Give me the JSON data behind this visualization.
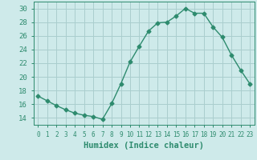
{
  "x": [
    0,
    1,
    2,
    3,
    4,
    5,
    6,
    7,
    8,
    9,
    10,
    11,
    12,
    13,
    14,
    15,
    16,
    17,
    18,
    19,
    20,
    21,
    22,
    23
  ],
  "y": [
    17.2,
    16.5,
    15.8,
    15.2,
    14.7,
    14.4,
    14.2,
    13.8,
    16.1,
    19.0,
    22.2,
    24.5,
    26.7,
    27.9,
    28.0,
    28.9,
    30.0,
    29.3,
    29.3,
    27.3,
    25.8,
    23.2,
    21.0,
    19.0
  ],
  "line_color": "#2e8b6e",
  "marker": "D",
  "markersize": 2.5,
  "linewidth": 1.0,
  "bg_color": "#ceeaea",
  "grid_color": "#aacece",
  "title": "",
  "xlabel": "Humidex (Indice chaleur)",
  "ylabel": "",
  "xlim": [
    -0.5,
    23.5
  ],
  "ylim": [
    13.0,
    31.0
  ],
  "yticks": [
    14,
    16,
    18,
    20,
    22,
    24,
    26,
    28,
    30
  ],
  "xtick_labels": [
    "0",
    "1",
    "2",
    "3",
    "4",
    "5",
    "6",
    "7",
    "8",
    "9",
    "10",
    "11",
    "12",
    "13",
    "14",
    "15",
    "16",
    "17",
    "18",
    "19",
    "20",
    "21",
    "22",
    "23"
  ],
  "tick_color": "#2e8b6e",
  "label_color": "#2e8b6e",
  "xlabel_fontsize": 7.5,
  "ytick_fontsize": 6.5,
  "xtick_fontsize": 5.5
}
